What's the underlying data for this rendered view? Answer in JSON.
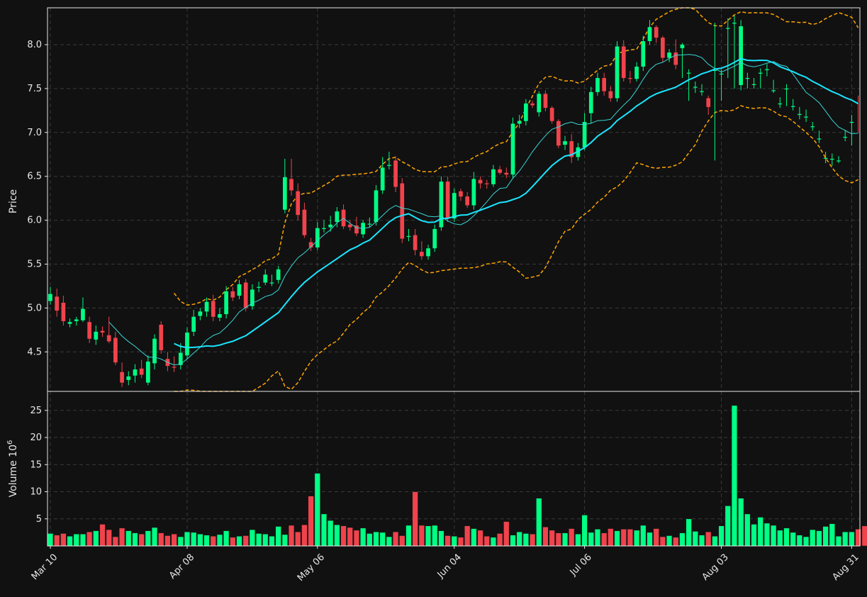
{
  "colors": {
    "background": "#111111",
    "up": "#00ff85",
    "down": "#f0434c",
    "ma_fast": "#3ad6d6",
    "ma_slow": "#19e6ff",
    "bands": "#ffa500",
    "grid": "#3a3a3a",
    "frame": "#e8e8e8"
  },
  "chart_data": [
    {
      "type": "candlestick",
      "ylabel": "Price",
      "ylim": [
        4.05,
        8.42
      ],
      "yticks": [
        "4.5",
        "5.0",
        "5.5",
        "6.0",
        "6.5",
        "7.0",
        "7.5",
        "8.0"
      ],
      "xticks": [
        "Mar 10",
        "Apr 08",
        "May 06",
        "Jun 04",
        "Jul 06",
        "Aug 03",
        "Aug 31"
      ],
      "xtick_index": [
        0,
        21,
        41,
        62,
        82,
        103,
        123
      ],
      "grid": true,
      "ohlc_close": [
        5.16,
        4.97,
        4.85,
        4.84,
        4.87,
        4.99,
        4.65,
        4.73,
        4.72,
        4.62,
        4.38,
        4.15,
        4.22,
        4.3,
        4.24,
        4.39,
        4.65,
        4.52,
        4.34,
        4.32,
        4.49,
        4.72,
        4.9,
        4.96,
        5.07,
        4.9,
        4.93,
        5.19,
        5.12,
        5.27,
        5.0,
        5.21,
        5.24,
        5.38,
        5.29,
        5.44,
        6.49,
        6.34,
        6.06,
        5.83,
        5.69,
        5.91,
        5.91,
        5.95,
        6.1,
        5.93,
        5.92,
        5.85,
        5.97,
        5.96,
        6.34,
        6.6,
        6.63,
        6.38,
        5.79,
        5.82,
        5.66,
        5.59,
        5.68,
        5.9,
        6.44,
        6.02,
        6.31,
        6.27,
        6.17,
        6.47,
        6.42,
        6.41,
        6.58,
        6.54,
        6.52,
        7.1,
        7.13,
        7.33,
        7.31,
        7.44,
        7.28,
        7.13,
        6.85,
        6.9,
        6.72,
        6.83,
        7.12,
        7.46,
        7.62,
        7.47,
        7.39,
        7.98,
        7.62,
        7.61,
        7.75,
        8.04,
        8.2,
        8.08,
        7.85,
        7.91,
        7.77,
        8.0,
        7.68,
        7.52,
        7.47,
        7.29,
        7.71,
        7.67,
        8.19,
        8.25,
        8.21,
        7.62,
        7.55,
        7.68,
        7.72,
        7.48,
        7.33,
        7.5,
        7.3,
        7.21,
        7.18,
        7.07,
        6.93,
        6.71,
        6.7,
        6.68,
        6.95,
        7.12,
        7.36
      ],
      "ohlc_open": [
        5.08,
        5.13,
        5.06,
        4.82,
        4.85,
        4.86,
        4.84,
        4.64,
        4.74,
        4.69,
        4.66,
        4.27,
        4.18,
        4.23,
        4.31,
        4.15,
        4.37,
        4.81,
        4.42,
        4.33,
        4.35,
        4.46,
        4.73,
        4.91,
        4.96,
        5.08,
        4.89,
        4.93,
        5.19,
        5.14,
        5.29,
        5.02,
        5.24,
        5.29,
        5.29,
        5.32,
        6.12,
        6.47,
        6.33,
        6.12,
        5.75,
        5.69,
        5.9,
        5.92,
        5.98,
        6.12,
        5.95,
        5.94,
        5.84,
        5.96,
        5.98,
        6.34,
        6.62,
        6.68,
        6.42,
        5.81,
        5.83,
        5.64,
        5.59,
        5.68,
        5.92,
        6.44,
        6.02,
        6.33,
        6.27,
        6.17,
        6.46,
        6.42,
        6.41,
        6.58,
        6.54,
        6.52,
        7.1,
        7.13,
        7.33,
        7.23,
        7.44,
        7.28,
        7.13,
        6.86,
        6.9,
        6.72,
        6.83,
        7.22,
        7.46,
        7.62,
        7.47,
        7.39,
        7.98,
        7.62,
        7.61,
        7.75,
        8.04,
        8.2,
        8.08,
        7.85,
        7.91,
        7.96,
        7.68,
        7.52,
        7.47,
        7.39,
        7.71,
        7.67,
        8.19,
        8.25,
        7.54,
        7.62,
        7.55,
        7.68,
        7.72,
        7.48,
        7.33,
        7.5,
        7.3,
        7.21,
        7.18,
        7.07,
        6.93,
        6.71,
        6.7,
        6.68,
        6.95,
        7.12
      ],
      "ohlc_high": [
        5.24,
        5.22,
        5.14,
        4.88,
        4.9,
        5.12,
        4.9,
        4.8,
        4.79,
        4.9,
        4.73,
        4.38,
        4.28,
        4.36,
        4.41,
        4.46,
        4.7,
        4.85,
        4.5,
        4.45,
        4.6,
        4.78,
        4.98,
        5.0,
        5.12,
        5.15,
        5.0,
        5.25,
        5.24,
        5.32,
        5.33,
        5.27,
        5.3,
        5.44,
        5.38,
        5.48,
        6.7,
        6.7,
        6.42,
        6.2,
        5.8,
        5.98,
        6.0,
        6.05,
        6.15,
        6.18,
        6.0,
        6.04,
        6.0,
        6.03,
        6.4,
        6.72,
        6.78,
        6.73,
        6.48,
        5.9,
        5.9,
        5.76,
        5.72,
        5.95,
        6.5,
        6.5,
        6.36,
        6.36,
        6.32,
        6.55,
        6.5,
        6.46,
        6.63,
        6.62,
        6.6,
        7.17,
        7.2,
        7.38,
        7.36,
        7.47,
        7.48,
        7.3,
        7.15,
        6.96,
        6.98,
        6.88,
        7.22,
        7.52,
        7.68,
        7.68,
        7.53,
        8.04,
        8.05,
        7.7,
        7.8,
        8.1,
        8.28,
        8.22,
        8.1,
        7.95,
        8.06,
        8.02,
        7.72,
        7.58,
        7.55,
        7.42,
        8.25,
        7.72,
        8.3,
        8.33,
        8.28,
        7.68,
        7.62,
        7.73,
        7.78,
        7.6,
        7.4,
        7.55,
        7.38,
        7.29,
        7.26,
        7.12,
        7.02,
        6.78,
        6.76,
        6.73,
        7.03,
        7.2,
        7.42
      ],
      "ohlc_low": [
        5.04,
        4.9,
        4.8,
        4.78,
        4.8,
        4.84,
        4.6,
        4.58,
        4.67,
        4.6,
        4.35,
        4.1,
        4.12,
        4.15,
        4.2,
        4.12,
        4.3,
        4.48,
        4.28,
        4.27,
        4.3,
        4.42,
        4.68,
        4.86,
        4.9,
        4.85,
        4.85,
        4.88,
        5.08,
        5.1,
        4.96,
        4.98,
        5.18,
        5.26,
        5.25,
        5.28,
        6.08,
        6.28,
        6.0,
        5.8,
        5.65,
        5.66,
        5.86,
        5.87,
        5.92,
        5.9,
        5.88,
        5.82,
        5.8,
        5.92,
        5.94,
        6.3,
        6.58,
        6.32,
        5.74,
        5.76,
        5.6,
        5.55,
        5.55,
        5.64,
        5.88,
        5.98,
        5.98,
        6.22,
        6.14,
        6.12,
        6.36,
        6.36,
        6.38,
        6.52,
        6.48,
        6.48,
        7.05,
        7.08,
        7.28,
        7.18,
        7.24,
        7.1,
        6.82,
        6.8,
        6.65,
        6.68,
        6.8,
        7.1,
        7.42,
        7.42,
        7.35,
        7.35,
        7.58,
        7.56,
        7.58,
        7.7,
        8.0,
        8.02,
        7.8,
        7.8,
        7.72,
        7.62,
        7.36,
        7.45,
        7.42,
        7.2,
        6.68,
        7.36,
        7.62,
        7.5,
        7.48,
        7.5,
        7.5,
        7.5,
        7.64,
        7.45,
        7.28,
        7.3,
        7.25,
        7.15,
        7.12,
        7.02,
        6.88,
        6.65,
        6.62,
        6.65,
        6.9,
        6.85,
        7.0
      ],
      "ma_fast": [
        null,
        null,
        null,
        null,
        null,
        null,
        null,
        null,
        null,
        null,
        null,
        null,
        null,
        null,
        null,
        null,
        null,
        null,
        null,
        null,
        null,
        null,
        null,
        null,
        null,
        null,
        null,
        null,
        null,
        null,
        null,
        null,
        null,
        null,
        null,
        null,
        null,
        null,
        null,
        null,
        null,
        null,
        null,
        null,
        null,
        null,
        null,
        null,
        null,
        null,
        null,
        null,
        null,
        null,
        null,
        null,
        null,
        null,
        null,
        null,
        null,
        null,
        null,
        null,
        null,
        null,
        null,
        null,
        null,
        null,
        null,
        null,
        null,
        null,
        null,
        null,
        null,
        null,
        null,
        null,
        null,
        null,
        null,
        null,
        null,
        null,
        null,
        null,
        null,
        null,
        null,
        null,
        null,
        null,
        null,
        null,
        null,
        null,
        null,
        null,
        null,
        null,
        null,
        null,
        null,
        null,
        null,
        null,
        null,
        null,
        null,
        null,
        null,
        null,
        null,
        null,
        null,
        null,
        null,
        null,
        null,
        null,
        null,
        null,
        null,
        null,
        null
      ],
      "ma_slow": [
        null,
        null,
        null,
        null,
        null,
        null,
        null,
        null,
        null,
        null,
        null,
        null,
        null,
        null,
        null,
        null,
        null,
        null,
        null,
        null,
        null,
        null,
        null,
        null,
        null,
        null,
        null,
        null,
        null,
        null,
        null,
        null,
        null,
        null,
        null,
        null,
        null,
        null,
        null,
        null,
        null,
        null,
        null,
        null,
        null,
        null,
        null,
        null,
        null,
        null,
        null,
        null,
        null,
        null,
        null,
        null,
        null,
        null,
        null,
        null,
        null,
        null,
        null,
        null,
        null,
        null,
        null,
        null,
        null,
        null,
        null,
        null,
        null,
        null,
        null,
        null,
        null,
        null,
        null,
        null,
        null,
        null,
        null,
        null,
        null,
        null,
        null,
        null,
        null,
        null,
        null,
        null,
        null,
        null,
        null,
        null,
        null,
        null,
        null,
        null,
        null,
        null,
        null,
        null,
        null,
        null,
        null,
        null,
        null,
        null,
        null,
        null,
        null,
        null,
        null,
        null,
        null,
        null,
        null,
        null,
        null,
        null,
        null,
        null,
        null,
        null,
        null
      ]
    },
    {
      "type": "bar",
      "ylabel": "Volume  10",
      "ylabel_exponent": "6",
      "ylim": [
        0,
        28.5
      ],
      "yticks": [
        "5",
        "10",
        "15",
        "20",
        "25"
      ],
      "grid": true,
      "values": [
        2.3,
        2.0,
        2.3,
        1.8,
        2.2,
        2.2,
        2.6,
        2.8,
        4.0,
        3.0,
        1.7,
        3.3,
        2.8,
        2.4,
        2.2,
        2.8,
        3.4,
        2.4,
        1.9,
        2.2,
        1.7,
        2.6,
        2.5,
        2.2,
        2.0,
        1.8,
        2.1,
        2.8,
        1.6,
        1.8,
        1.9,
        3.0,
        2.3,
        2.2,
        1.8,
        3.6,
        2.1,
        3.8,
        2.6,
        3.9,
        9.2,
        13.4,
        5.9,
        4.7,
        3.9,
        3.7,
        3.4,
        2.9,
        3.3,
        2.3,
        2.6,
        2.5,
        1.7,
        2.6,
        1.9,
        3.8,
        10.0,
        3.8,
        3.7,
        3.8,
        2.8,
        1.9,
        1.8,
        1.6,
        3.7,
        3.2,
        2.9,
        1.8,
        1.6,
        2.3,
        4.5,
        2.0,
        2.6,
        2.3,
        2.2,
        8.8,
        3.5,
        2.9,
        2.4,
        2.4,
        3.2,
        2.2,
        5.7,
        2.5,
        3.1,
        2.4,
        3.2,
        2.8,
        3.1,
        3.1,
        2.9,
        3.8,
        2.5,
        3.2,
        1.7,
        1.9,
        1.6,
        2.4,
        5.0,
        2.7,
        2.0,
        2.6,
        1.8,
        3.7,
        7.4,
        25.9,
        8.8,
        5.9,
        4.0,
        5.3,
        4.2,
        3.8,
        2.9,
        3.3,
        2.5,
        2.0,
        1.7,
        3.0,
        2.8,
        3.6,
        4.1,
        1.8,
        2.6,
        2.6,
        3.1,
        3.7
      ]
    }
  ]
}
